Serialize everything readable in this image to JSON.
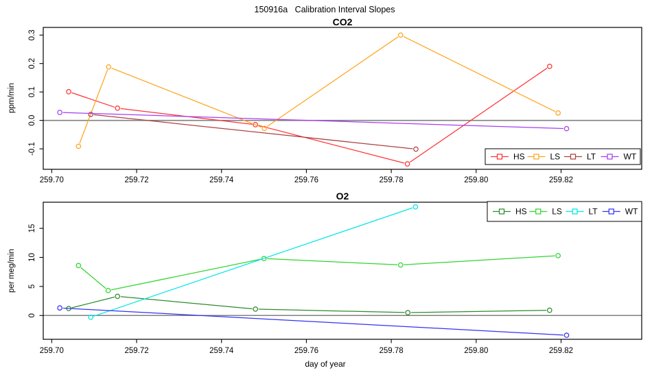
{
  "page": {
    "main_title": "150916a   Calibration Interval Slopes"
  },
  "chart_data": [
    {
      "type": "line",
      "title": "CO2",
      "ylabel": "ppm/min",
      "xlabel": "",
      "xlim": [
        259.698,
        259.839
      ],
      "ylim": [
        -0.172,
        0.327
      ],
      "grid": false,
      "zero_line": true,
      "zero_line_color": "#808080",
      "xticks": {
        "values": [
          259.7,
          259.72,
          259.74,
          259.76,
          259.78,
          259.8,
          259.82
        ],
        "labels": [
          "259.70",
          "259.72",
          "259.74",
          "259.76",
          "259.78",
          "259.80",
          "259.82"
        ]
      },
      "yticks": {
        "values": [
          -0.1,
          0.0,
          0.1,
          0.2,
          0.3
        ],
        "labels": [
          "-0.1",
          "0.0",
          "0.1",
          "0.2",
          "0.3"
        ]
      },
      "legend": {
        "position": "bottom-right",
        "labels": [
          "HS",
          "LS",
          "LT",
          "WT"
        ]
      },
      "series": [
        {
          "name": "HS",
          "color": "#ff3232",
          "x": [
            259.704,
            259.7155,
            259.748,
            259.7838,
            259.8173
          ],
          "y": [
            0.101,
            0.043,
            -0.015,
            -0.153,
            0.19
          ]
        },
        {
          "name": "LS",
          "color": "#ffa41e",
          "x": [
            259.7063,
            259.7134,
            259.7501,
            259.7822,
            259.8193
          ],
          "y": [
            -0.091,
            0.188,
            -0.028,
            0.3,
            0.026
          ]
        },
        {
          "name": "LT",
          "color": "#ad4040",
          "x": [
            259.7092,
            259.7858
          ],
          "y": [
            0.021,
            -0.101
          ]
        },
        {
          "name": "WT",
          "color": "#a83cf0",
          "x": [
            259.7019,
            259.8213
          ],
          "y": [
            0.028,
            -0.029
          ]
        }
      ]
    },
    {
      "type": "line",
      "title": "O2",
      "ylabel": "per meg/min",
      "xlabel": "day of year",
      "xlim": [
        259.698,
        259.839
      ],
      "ylim": [
        -4.1,
        19.5
      ],
      "grid": false,
      "zero_line": true,
      "zero_line_color": "#808080",
      "xticks": {
        "values": [
          259.7,
          259.72,
          259.74,
          259.76,
          259.78,
          259.8,
          259.82
        ],
        "labels": [
          "259.70",
          "259.72",
          "259.74",
          "259.76",
          "259.78",
          "259.80",
          "259.82"
        ]
      },
      "yticks": {
        "values": [
          0,
          5,
          10,
          15
        ],
        "labels": [
          "0",
          "5",
          "10",
          "15"
        ]
      },
      "legend": {
        "position": "top-right",
        "labels": [
          "HS",
          "LS",
          "LT",
          "WT"
        ]
      },
      "series": [
        {
          "name": "HS",
          "color": "#2c8b2c",
          "x": [
            259.704,
            259.7155,
            259.748,
            259.7839,
            259.8173
          ],
          "y": [
            1.2,
            3.3,
            1.1,
            0.5,
            0.9
          ]
        },
        {
          "name": "LS",
          "color": "#30d530",
          "x": [
            259.7063,
            259.7133,
            259.75,
            259.7822,
            259.8193
          ],
          "y": [
            8.6,
            4.3,
            9.8,
            8.7,
            10.3
          ]
        },
        {
          "name": "LT",
          "color": "#00e6e6",
          "x": [
            259.7092,
            259.7857
          ],
          "y": [
            -0.3,
            18.7
          ]
        },
        {
          "name": "WT",
          "color": "#3232f5",
          "x": [
            259.7019,
            259.8213
          ],
          "y": [
            1.3,
            -3.4
          ]
        }
      ]
    }
  ]
}
